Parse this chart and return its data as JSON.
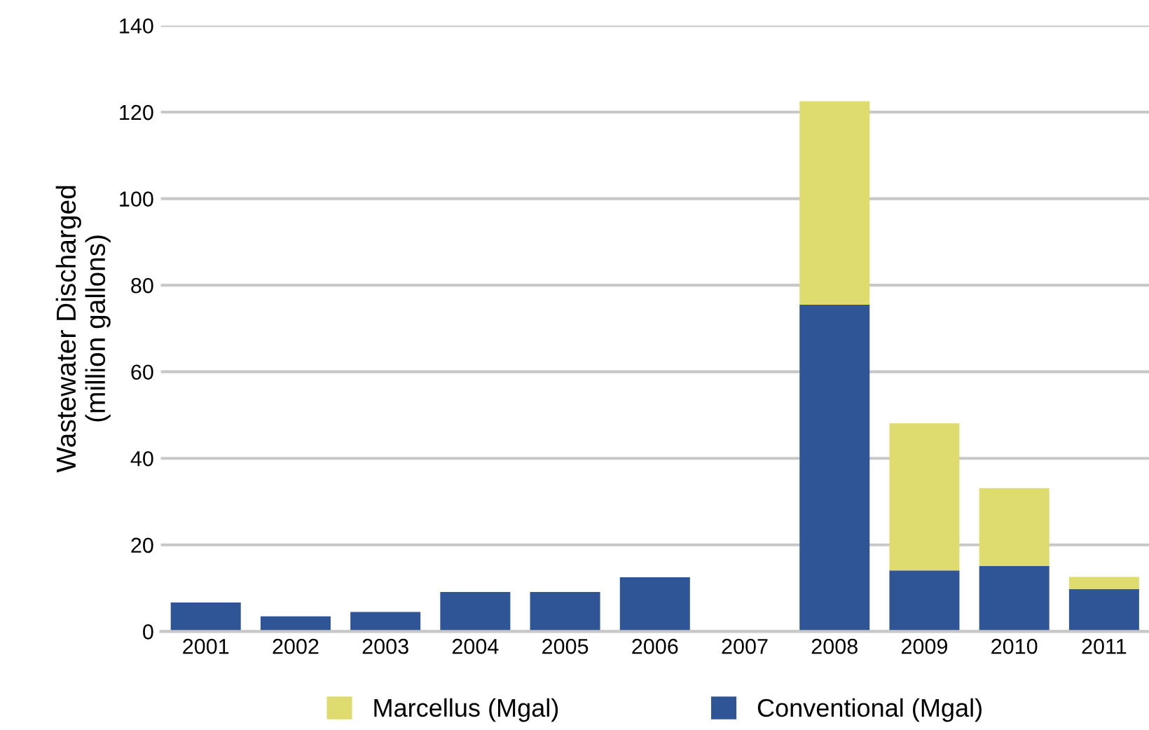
{
  "chart_data": {
    "type": "bar",
    "ylabel": "Wastewater Discharged\n(million gallons)",
    "categories": [
      "2001",
      "2002",
      "2003",
      "2004",
      "2005",
      "2006",
      "2007",
      "2008",
      "2009",
      "2010",
      "2011"
    ],
    "stacked": true,
    "series": [
      {
        "name": "Conventional (Mgal)",
        "color": "#2f5597",
        "values": [
          6.7,
          3.5,
          4.5,
          9.1,
          9.1,
          12.5,
          0,
          75.5,
          14.1,
          15.1,
          9.8
        ]
      },
      {
        "name": "Marcellus (Mgal)",
        "color": "#dfdc6f",
        "values": [
          0,
          0,
          0,
          0,
          0,
          0,
          0,
          47,
          34,
          18,
          2.8
        ]
      }
    ],
    "ylim": [
      0,
      140
    ],
    "yticks": [
      0,
      20,
      40,
      60,
      80,
      100,
      120,
      140
    ],
    "grid": "y",
    "legend": "bottom"
  }
}
